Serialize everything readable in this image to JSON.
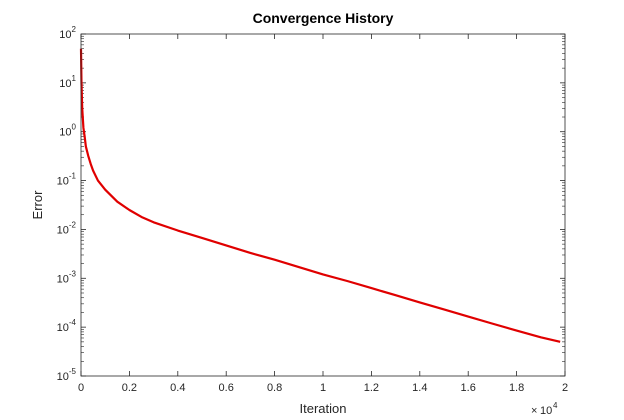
{
  "chart_data": {
    "type": "line",
    "title": "Convergence History",
    "xlabel": "Iteration",
    "ylabel": "Error",
    "x_scale_exponent": {
      "base": "10",
      "exponent": "4"
    },
    "xlim": [
      0,
      20000
    ],
    "ylim": [
      1e-05,
      100
    ],
    "yscale": "log",
    "grid": false,
    "x_ticks": [
      {
        "value": 0,
        "label": "0"
      },
      {
        "value": 2000,
        "label": "0.2"
      },
      {
        "value": 4000,
        "label": "0.4"
      },
      {
        "value": 6000,
        "label": "0.6"
      },
      {
        "value": 8000,
        "label": "0.8"
      },
      {
        "value": 10000,
        "label": "1"
      },
      {
        "value": 12000,
        "label": "1.2"
      },
      {
        "value": 14000,
        "label": "1.4"
      },
      {
        "value": 16000,
        "label": "1.6"
      },
      {
        "value": 18000,
        "label": "1.8"
      },
      {
        "value": 20000,
        "label": "2"
      }
    ],
    "y_ticks": [
      {
        "value": 1e-05,
        "base": "10",
        "exponent": "-5"
      },
      {
        "value": 0.0001,
        "base": "10",
        "exponent": "-4"
      },
      {
        "value": 0.001,
        "base": "10",
        "exponent": "-3"
      },
      {
        "value": 0.01,
        "base": "10",
        "exponent": "-2"
      },
      {
        "value": 0.1,
        "base": "10",
        "exponent": "-1"
      },
      {
        "value": 1,
        "base": "10",
        "exponent": "0"
      },
      {
        "value": 10,
        "base": "10",
        "exponent": "1"
      },
      {
        "value": 100,
        "base": "10",
        "exponent": "2"
      }
    ],
    "series": [
      {
        "color": "#e00000",
        "x": [
          0,
          20,
          50,
          100,
          150,
          200,
          300,
          400,
          500,
          700,
          1000,
          1500,
          2000,
          2500,
          3000,
          4000,
          5000,
          6000,
          7000,
          8000,
          9000,
          10000,
          11000,
          12000,
          13000,
          14000,
          15000,
          16000,
          17000,
          18000,
          19000,
          19800
        ],
        "y": [
          50,
          10,
          3,
          1.2,
          0.8,
          0.5,
          0.32,
          0.22,
          0.16,
          0.1,
          0.065,
          0.037,
          0.025,
          0.018,
          0.014,
          0.0095,
          0.0067,
          0.0047,
          0.0033,
          0.0024,
          0.0017,
          0.0012,
          0.00088,
          0.00063,
          0.00045,
          0.00032,
          0.00023,
          0.000165,
          0.000118,
          8.5e-05,
          6.2e-05,
          5e-05
        ]
      }
    ]
  }
}
